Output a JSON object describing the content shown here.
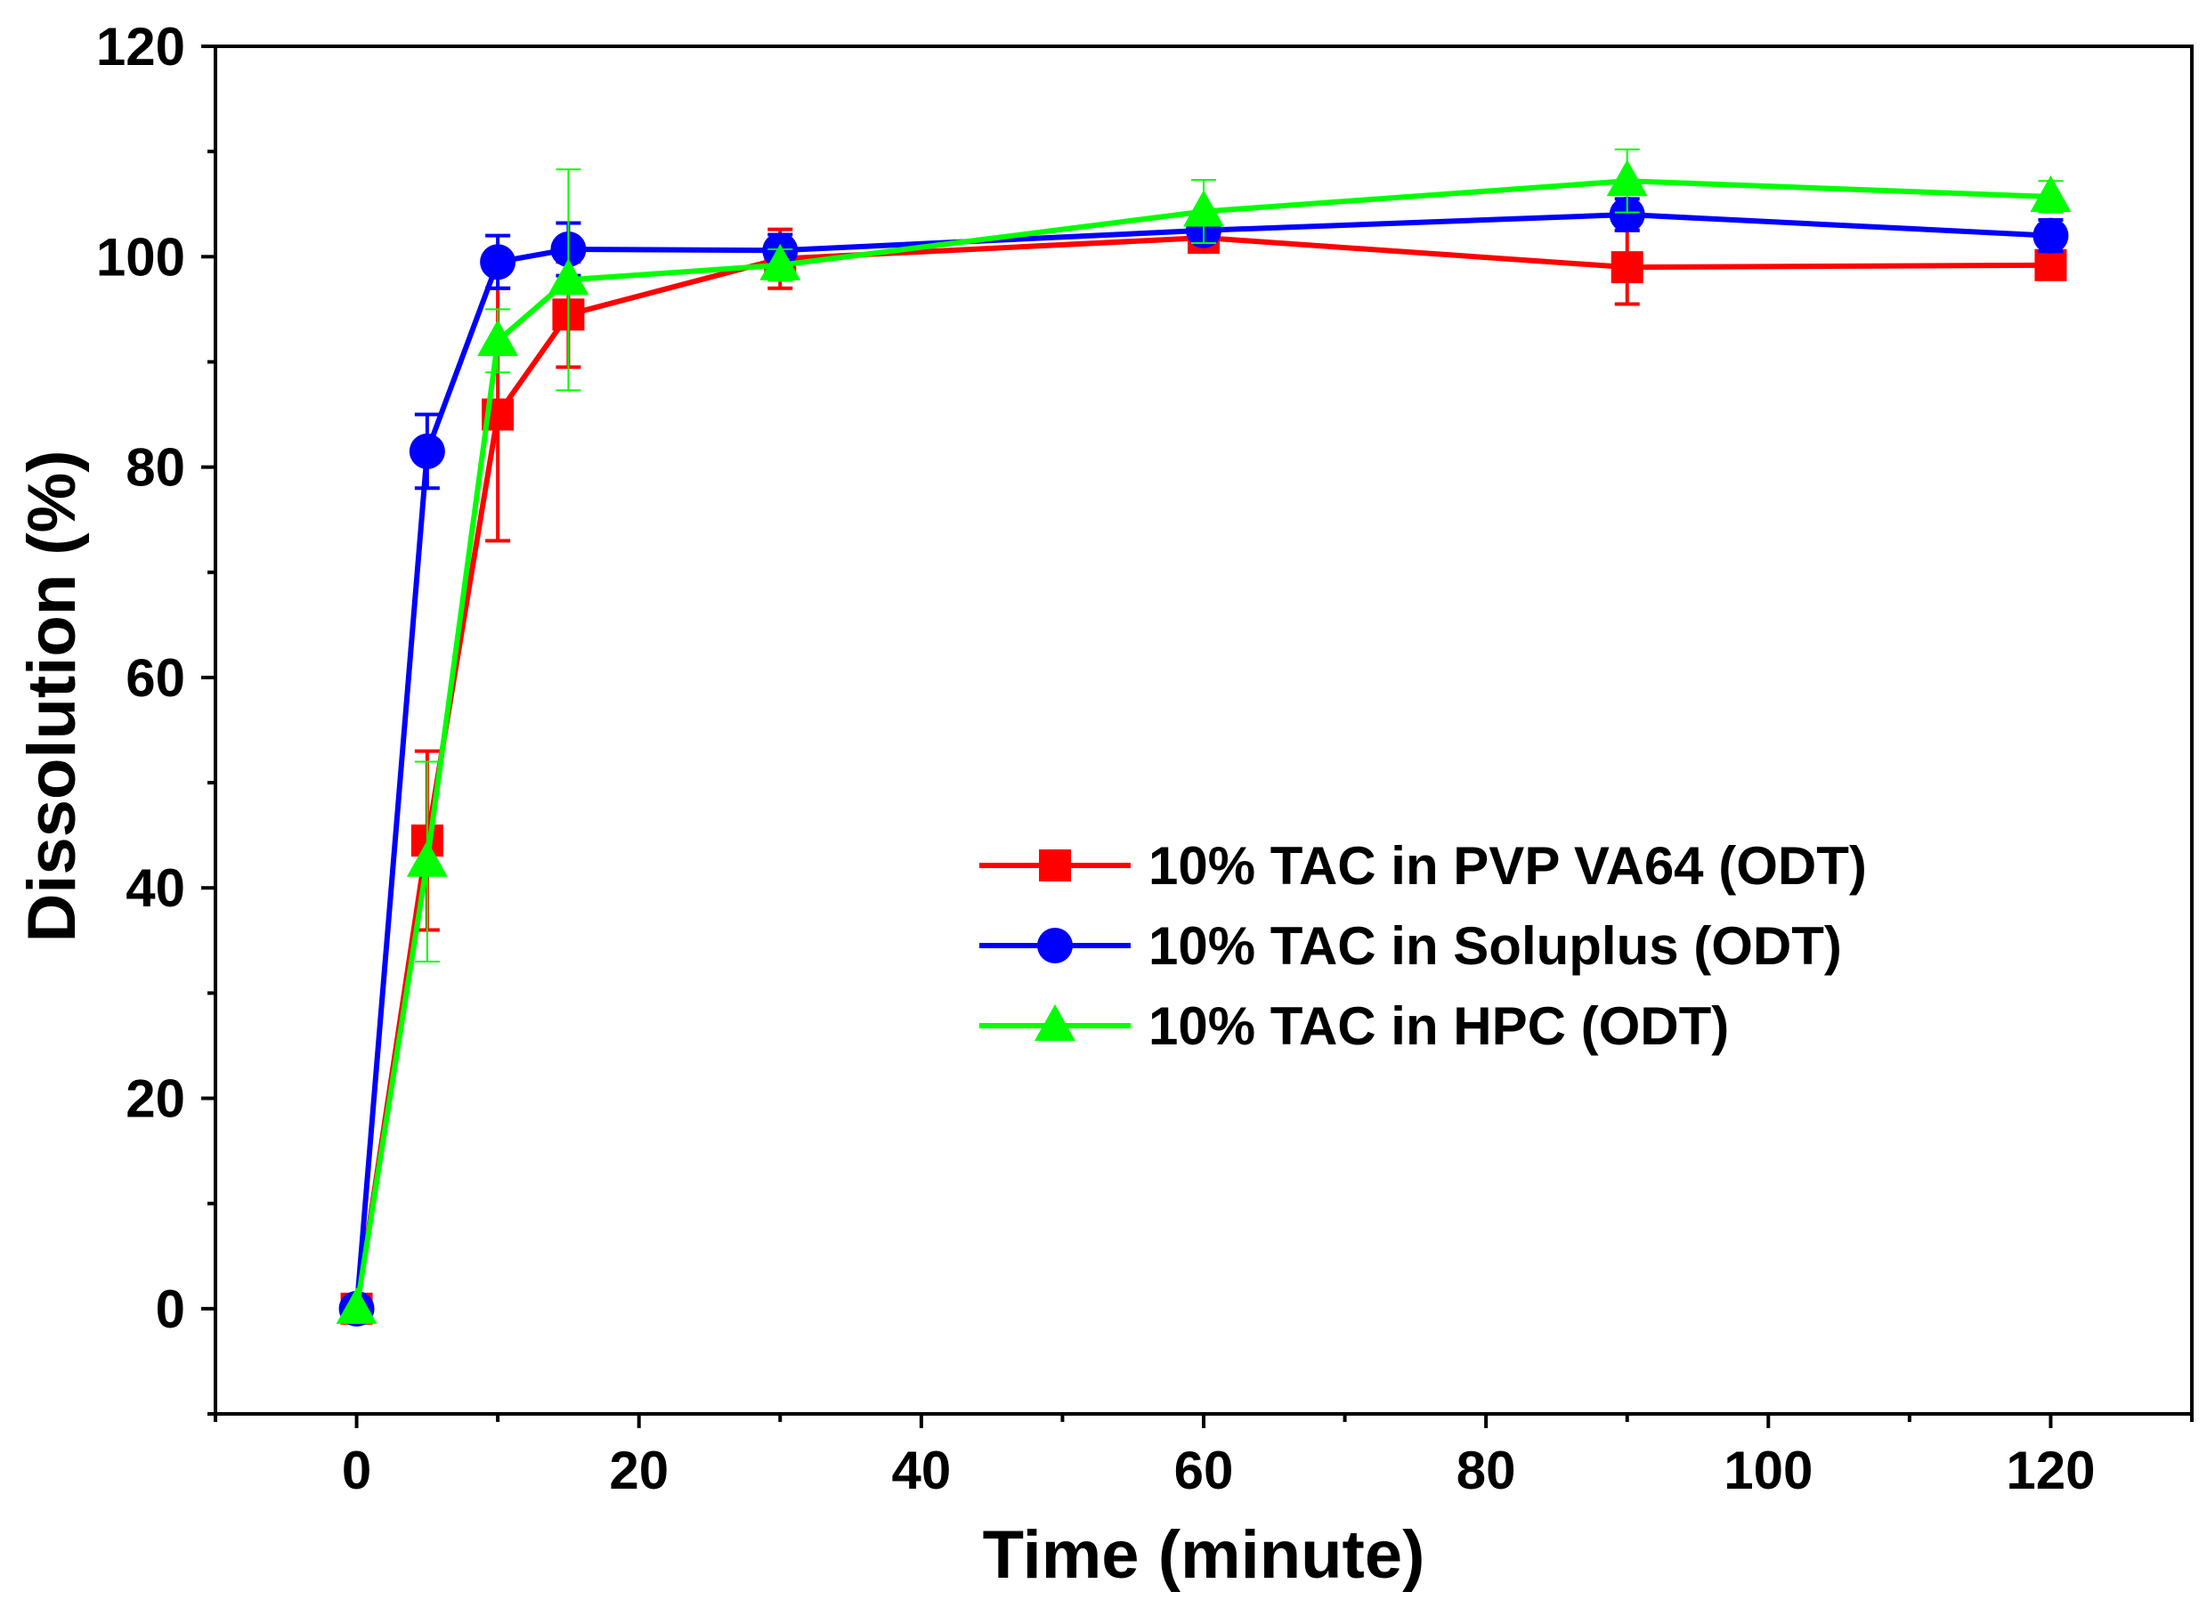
{
  "chart_data": {
    "type": "line",
    "title": "",
    "xlabel": "Time (minute)",
    "ylabel": "Dissolution (%)",
    "xlim": [
      -10,
      130
    ],
    "ylim": [
      -10,
      120
    ],
    "xticks": [
      0,
      20,
      40,
      60,
      80,
      100,
      120
    ],
    "yticks": [
      0,
      20,
      40,
      60,
      80,
      100,
      120
    ],
    "grid": false,
    "legend_position": "center-right",
    "x": [
      0,
      5,
      10,
      15,
      30,
      60,
      90,
      120
    ],
    "series": [
      {
        "name": "10% TAC in PVP VA64 (ODT)",
        "color": "#ff0000",
        "marker": "square",
        "values": [
          0,
          44.5,
          85,
          94.5,
          99.8,
          101.8,
          99,
          99.2
        ],
        "errors": [
          0,
          8.5,
          12,
          5,
          2.8,
          1,
          3.5,
          1
        ]
      },
      {
        "name": "10% TAC in Soluplus (ODT)",
        "color": "#0000ff",
        "marker": "circle",
        "values": [
          0,
          81.5,
          99.5,
          100.7,
          100.6,
          102.5,
          104,
          102
        ],
        "errors": [
          0,
          3.5,
          2.5,
          2.5,
          1.5,
          1,
          1.5,
          1.5
        ]
      },
      {
        "name": "10% TAC in HPC (ODT)",
        "color": "#00ff00",
        "marker": "triangle",
        "values": [
          0,
          42.5,
          92,
          97.8,
          99.2,
          104.3,
          107.2,
          105.7
        ],
        "errors": [
          0,
          9.5,
          3,
          10.5,
          1.5,
          3,
          3,
          1.5
        ]
      }
    ]
  }
}
